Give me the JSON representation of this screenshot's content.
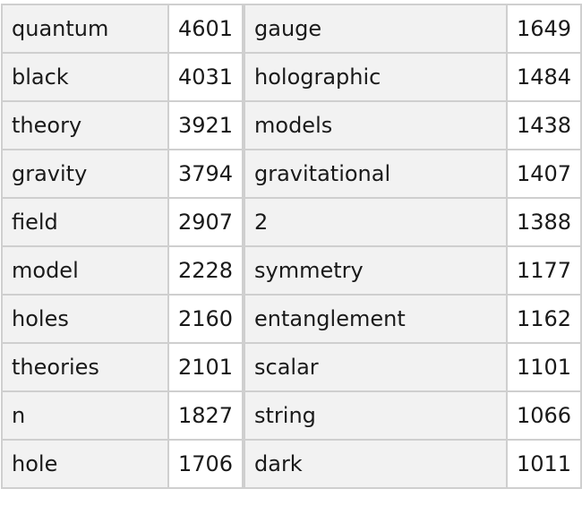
{
  "table": {
    "rows": [
      {
        "word1": "quantum",
        "count1": "4601",
        "word2": "gauge",
        "count2": "1649"
      },
      {
        "word1": "black",
        "count1": "4031",
        "word2": "holographic",
        "count2": "1484"
      },
      {
        "word1": "theory",
        "count1": "3921",
        "word2": "models",
        "count2": "1438"
      },
      {
        "word1": "gravity",
        "count1": "3794",
        "word2": "gravitational",
        "count2": "1407"
      },
      {
        "word1": "field",
        "count1": "2907",
        "word2": "2",
        "count2": "1388"
      },
      {
        "word1": "model",
        "count1": "2228",
        "word2": "symmetry",
        "count2": "1177"
      },
      {
        "word1": "holes",
        "count1": "2160",
        "word2": "entanglement",
        "count2": "1162"
      },
      {
        "word1": "theories",
        "count1": "2101",
        "word2": "scalar",
        "count2": "1101"
      },
      {
        "word1": "n",
        "count1": "1827",
        "word2": "string",
        "count2": "1066"
      },
      {
        "word1": "hole",
        "count1": "1706",
        "word2": "dark",
        "count2": "1011"
      }
    ]
  }
}
